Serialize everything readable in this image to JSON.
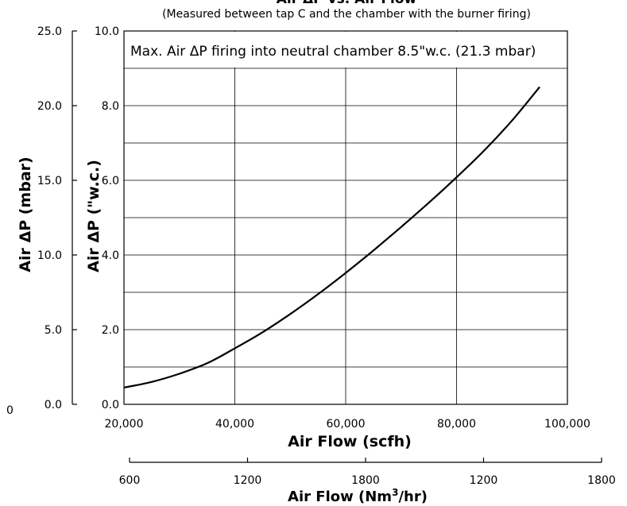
{
  "chart_data": {
    "type": "line",
    "title": "Air ΔP vs. Air Flow",
    "subtitle": "(Measured between tap C and the chamber with the burner firing)",
    "annotation": "Max. Air ΔP firing into neutral chamber 8.5\"w.c. (21.3 mbar)",
    "xlabel": "Air Flow (scfh)",
    "xlabel2_main": "Air Flow (Nm",
    "xlabel2_sup": "3",
    "xlabel2_tail": "/hr)",
    "ylabel": "Air ΔP (\"w.c.)",
    "ylabel2": "Air ΔP (mbar)",
    "xlim": [
      20000,
      100000
    ],
    "ylim": [
      0,
      10
    ],
    "ylim2": [
      0,
      25
    ],
    "x_ticks": [
      "20,000",
      "40,000",
      "60,000",
      "80,000",
      "100,000"
    ],
    "y_ticks": [
      "0.0",
      "2.0",
      "4.0",
      "6.0",
      "8.0",
      "10.0"
    ],
    "y2_ticks": [
      "0.0",
      "5.0",
      "10.0",
      "15.0",
      "20.0",
      "25.0"
    ],
    "x2_ticks": [
      "600",
      "1200",
      "1800",
      "1200",
      "1800"
    ],
    "stray_label": "0",
    "grid": true,
    "series": [
      {
        "x": [
          20000,
          25000,
          30000,
          35000,
          40000,
          45000,
          50000,
          55000,
          60000,
          65000,
          70000,
          75000,
          80000,
          85000,
          90000,
          95000
        ],
        "y": [
          0.45,
          0.6,
          0.82,
          1.1,
          1.5,
          1.93,
          2.42,
          2.95,
          3.52,
          4.12,
          4.75,
          5.4,
          6.08,
          6.8,
          7.6,
          8.5
        ]
      }
    ]
  }
}
